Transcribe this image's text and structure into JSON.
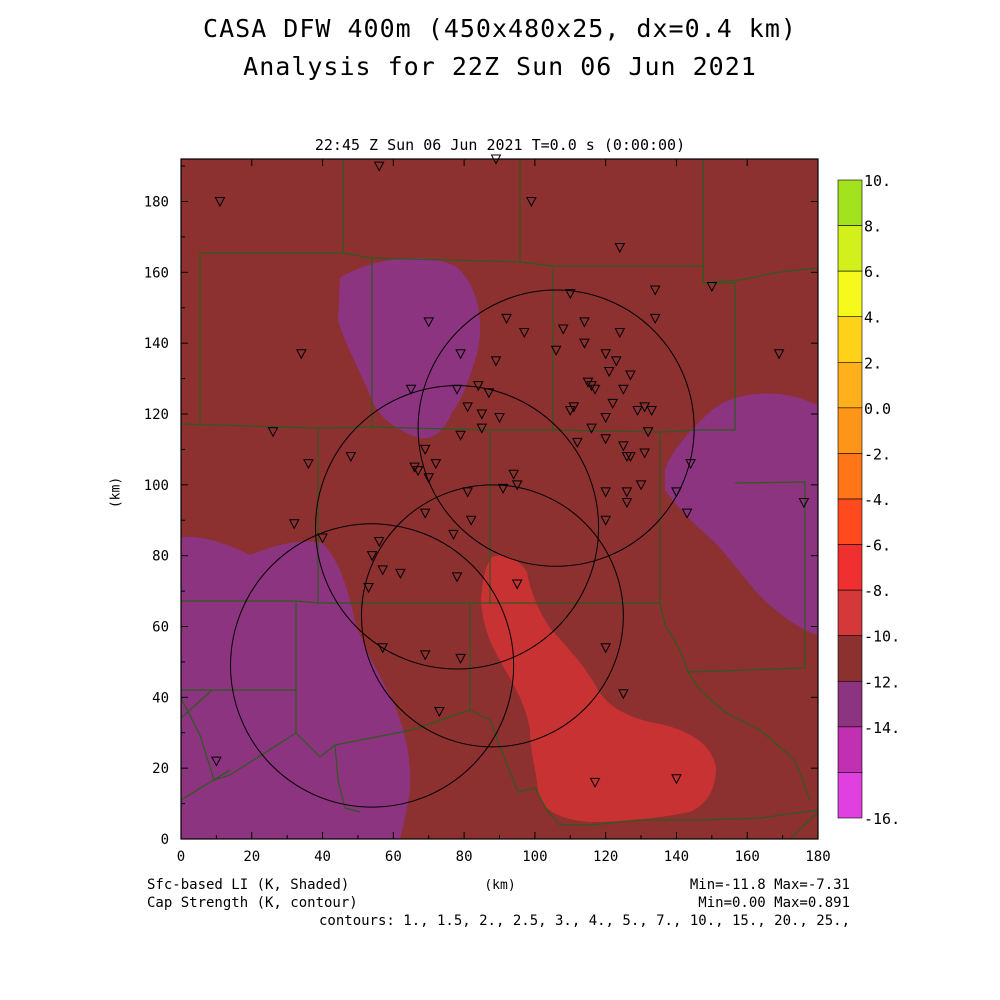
{
  "title": "CASA DFW 400m (450x480x25, dx=0.4 km)",
  "subtitle": "Analysis for 22Z Sun 06 Jun 2021",
  "plot_subtitle": "22:45 Z Sun 06 Jun 2021    T=0.0 s (0:00:00)",
  "xlabel": "(km)",
  "ylabel": "(km)",
  "footer": {
    "field1": "Sfc-based LI (K, Shaded)",
    "field2": "Cap Strength (K, contour)",
    "range1": "Min=-11.8 Max=-7.31",
    "range2": "Min=0.00 Max=0.891",
    "contours": "contours: 1., 1.5, 2., 2.5, 3., 4., 5., 7., 10., 15., 20., 25.,"
  },
  "axes": {
    "x_ticks": [
      0,
      20,
      40,
      60,
      80,
      100,
      120,
      140,
      160,
      180
    ],
    "y_ticks": [
      0,
      20,
      40,
      60,
      80,
      100,
      120,
      140,
      160,
      180
    ],
    "x_range": [
      0,
      180
    ],
    "y_range": [
      0,
      192
    ]
  },
  "colorbar": {
    "labels": [
      "10.",
      "8.",
      "6.",
      "4.",
      "2.",
      "0.0",
      "-2.",
      "-4.",
      "-6.",
      "-8.",
      "-10.",
      "-12.",
      "-14.",
      "-16."
    ],
    "colors": [
      "#a2e31e",
      "#d2f01c",
      "#f5fa1c",
      "#ffd21a",
      "#ffb01a",
      "#ff9518",
      "#ff7518",
      "#ff4a1e",
      "#f03030",
      "#d43838",
      "#8c3030",
      "#8c3480",
      "#c030b0",
      "#e040e0"
    ]
  },
  "colors": {
    "li_-8_to_-10": "#8c3030",
    "li_-6_to_-8": "#c83232",
    "li_-10_to_-12": "#8c3480",
    "county_lines": "#2e5a1e"
  },
  "radar_rings": [
    {
      "center_km": [
        106,
        116
      ],
      "radius_km": 39
    },
    {
      "center_km": [
        78,
        88
      ],
      "radius_km": 40
    },
    {
      "center_km": [
        88,
        63
      ],
      "radius_km": 37
    },
    {
      "center_km": [
        54,
        49
      ],
      "radius_km": 40
    }
  ],
  "stations_km": [
    [
      11,
      180
    ],
    [
      56,
      190
    ],
    [
      89,
      192
    ],
    [
      99,
      180
    ],
    [
      124,
      167
    ],
    [
      150,
      156
    ],
    [
      110,
      154
    ],
    [
      134,
      155
    ],
    [
      70,
      146
    ],
    [
      92,
      147
    ],
    [
      114,
      146
    ],
    [
      97,
      143
    ],
    [
      108,
      144
    ],
    [
      124,
      143
    ],
    [
      134,
      147
    ],
    [
      34,
      137
    ],
    [
      79,
      137
    ],
    [
      120,
      137
    ],
    [
      114,
      140
    ],
    [
      106,
      138
    ],
    [
      89,
      135
    ],
    [
      121,
      132
    ],
    [
      123,
      135
    ],
    [
      127,
      131
    ],
    [
      169,
      137
    ],
    [
      65,
      127
    ],
    [
      78,
      127
    ],
    [
      84,
      128
    ],
    [
      87,
      126
    ],
    [
      115,
      129
    ],
    [
      116,
      128
    ],
    [
      117,
      127
    ],
    [
      111,
      122
    ],
    [
      125,
      127
    ],
    [
      81,
      122
    ],
    [
      85,
      120
    ],
    [
      90,
      119
    ],
    [
      110,
      121
    ],
    [
      120,
      119
    ],
    [
      122,
      123
    ],
    [
      129,
      121
    ],
    [
      131,
      122
    ],
    [
      133,
      121
    ],
    [
      26,
      115
    ],
    [
      79,
      114
    ],
    [
      85,
      116
    ],
    [
      112,
      112
    ],
    [
      120,
      113
    ],
    [
      132,
      115
    ],
    [
      36,
      106
    ],
    [
      48,
      108
    ],
    [
      69,
      110
    ],
    [
      72,
      106
    ],
    [
      66,
      105
    ],
    [
      67,
      104
    ],
    [
      70,
      102
    ],
    [
      116,
      116
    ],
    [
      125,
      111
    ],
    [
      126,
      108
    ],
    [
      127,
      108
    ],
    [
      131,
      109
    ],
    [
      144,
      106
    ],
    [
      94,
      103
    ],
    [
      81,
      98
    ],
    [
      91,
      99
    ],
    [
      95,
      100
    ],
    [
      120,
      98
    ],
    [
      126,
      98
    ],
    [
      130,
      100
    ],
    [
      140,
      98
    ],
    [
      32,
      89
    ],
    [
      69,
      92
    ],
    [
      82,
      90
    ],
    [
      120,
      90
    ],
    [
      126,
      95
    ],
    [
      143,
      92
    ],
    [
      176,
      95
    ],
    [
      40,
      85
    ],
    [
      77,
      86
    ],
    [
      56,
      84
    ],
    [
      54,
      80
    ],
    [
      57,
      76
    ],
    [
      62,
      75
    ],
    [
      78,
      74
    ],
    [
      95,
      72
    ],
    [
      53,
      71
    ],
    [
      57,
      54
    ],
    [
      69,
      52
    ],
    [
      79,
      51
    ],
    [
      120,
      54
    ],
    [
      125,
      41
    ],
    [
      73,
      36
    ],
    [
      10,
      22
    ],
    [
      117,
      16
    ],
    [
      140,
      17
    ]
  ]
}
